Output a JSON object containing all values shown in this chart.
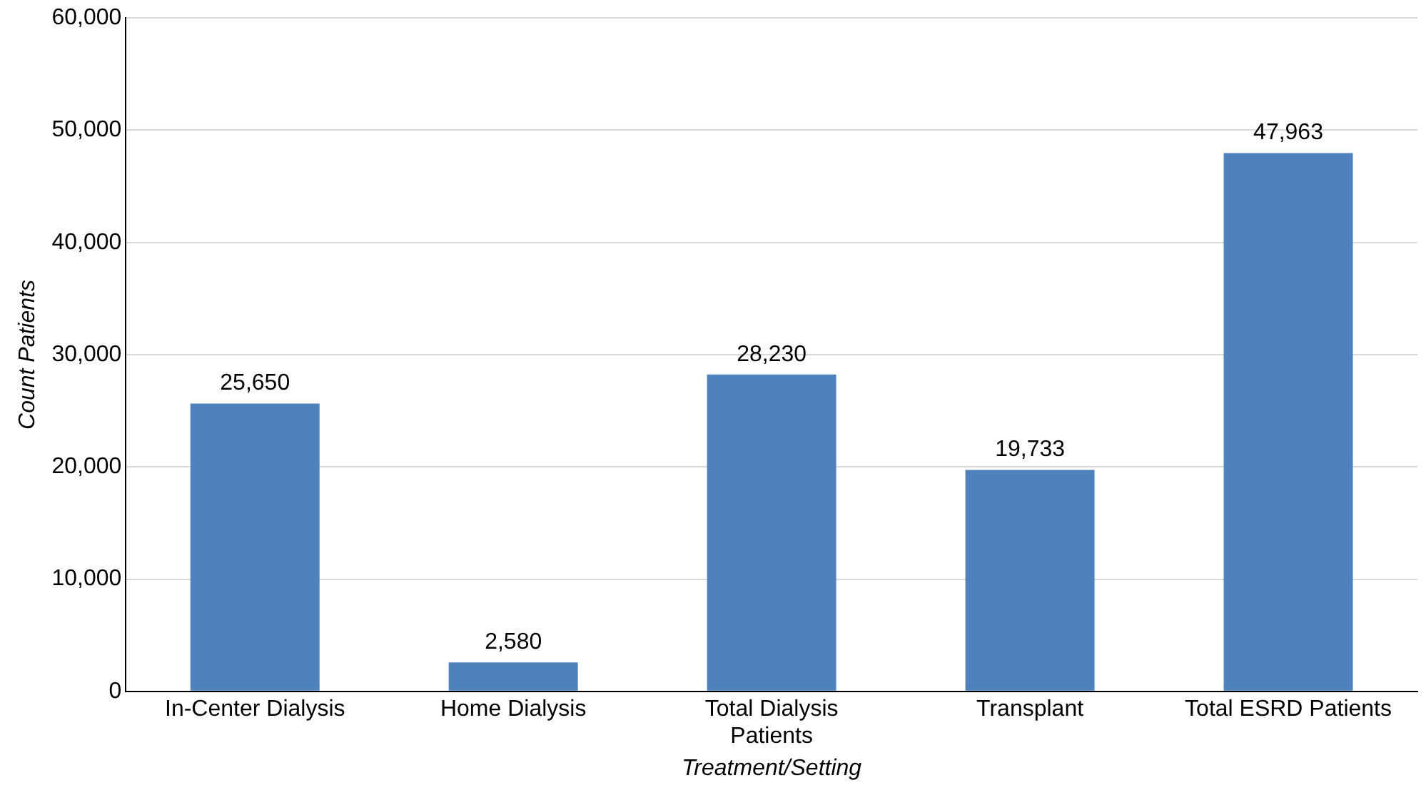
{
  "chart_data": {
    "type": "bar",
    "xlabel": "Treatment/Setting",
    "ylabel": "Count Patients",
    "categories": [
      "In-Center Dialysis",
      "Home Dialysis",
      "Total Dialysis Patients",
      "Transplant",
      "Total ESRD Patients"
    ],
    "values": [
      25650,
      2580,
      28230,
      19733,
      47963
    ],
    "color": "#4f81bd",
    "value_labels": [
      "25,650",
      "2,580",
      "28,230",
      "19,733",
      "47,963"
    ],
    "ylim": [
      0,
      60000
    ],
    "yticks": [
      0,
      {
        "value": 10000,
        "label": "10,000"
      },
      {
        "value": 20000,
        "label": "20,000"
      },
      {
        "value": 30000,
        "label": "30,000"
      },
      {
        "value": 40000,
        "label": "40,000"
      },
      {
        "value": 50000,
        "label": "50,000"
      },
      {
        "value": 60000,
        "label": "60,000"
      }
    ],
    "grid": "y"
  }
}
